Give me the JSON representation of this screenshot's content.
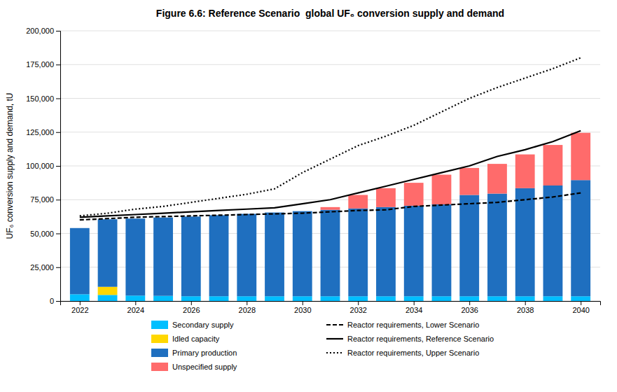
{
  "chart_data": {
    "type": "bar",
    "stacked": true,
    "title": "Figure 6.6: Reference Scenario  global UF₆ conversion supply and demand",
    "ylabel": "UF₆ conversion supply and demand, tU",
    "x": [
      2022,
      2023,
      2024,
      2025,
      2026,
      2027,
      2028,
      2029,
      2030,
      2031,
      2032,
      2033,
      2034,
      2035,
      2036,
      2037,
      2038,
      2039,
      2040
    ],
    "xlim": [
      2021.3,
      2040.7
    ],
    "xticks": [
      2022,
      2024,
      2026,
      2028,
      2030,
      2032,
      2034,
      2036,
      2038,
      2040
    ],
    "ylim": [
      0,
      200000
    ],
    "yticks": [
      0,
      {
        "value": 25000,
        "label": "25,000"
      },
      {
        "value": 50000,
        "label": "50,000"
      },
      {
        "value": 75000,
        "label": "75,000"
      },
      {
        "value": 100000,
        "label": "100,000"
      },
      {
        "value": 125000,
        "label": "125,000"
      },
      {
        "value": 150000,
        "label": "150,000"
      },
      {
        "value": 175000,
        "label": "175,000"
      },
      {
        "value": 200000,
        "label": "200,000"
      }
    ],
    "grid": true,
    "legend": "bottom",
    "series": [
      {
        "name": "Secondary supply",
        "type": "bar",
        "color": "#00BFFF",
        "values": [
          5000,
          4500,
          4000,
          3800,
          3500,
          3500,
          3500,
          3500,
          3500,
          3500,
          3500,
          3500,
          3500,
          3500,
          3500,
          3500,
          3500,
          3500,
          3500
        ]
      },
      {
        "name": "Idled capacity",
        "type": "bar",
        "color": "#FFD700",
        "values": [
          0,
          6000,
          0,
          0,
          0,
          0,
          0,
          0,
          0,
          0,
          0,
          0,
          0,
          0,
          0,
          0,
          0,
          0,
          0
        ]
      },
      {
        "name": "Primary production",
        "type": "bar",
        "color": "#1F6FBF",
        "values": [
          49000,
          50000,
          57000,
          58000,
          59000,
          60000,
          61000,
          62000,
          63000,
          64000,
          65000,
          66000,
          67000,
          68000,
          75000,
          76000,
          80000,
          82000,
          86000
        ]
      },
      {
        "name": "Unspecified supply",
        "type": "bar",
        "color": "#FF6B6B",
        "values": [
          0,
          0,
          0,
          0,
          0,
          0,
          0,
          0,
          0,
          2000,
          10000,
          14000,
          17000,
          22000,
          20000,
          22000,
          25000,
          30000,
          35000
        ]
      },
      {
        "name": "Reactor requirements, Lower Scenario",
        "type": "line",
        "color": "#000000",
        "line_style": "dashed",
        "values": [
          60000,
          61000,
          62000,
          62500,
          63000,
          63500,
          64000,
          64500,
          65000,
          66000,
          67000,
          67500,
          70000,
          71000,
          72000,
          73000,
          75000,
          77000,
          80000
        ]
      },
      {
        "name": "Reactor requirements, Reference Scenario",
        "type": "line",
        "color": "#000000",
        "line_style": "solid",
        "values": [
          62000,
          63000,
          64000,
          65000,
          66000,
          67000,
          68000,
          69000,
          72000,
          75000,
          80000,
          85000,
          90000,
          95000,
          100000,
          107000,
          112000,
          118000,
          126000
        ]
      },
      {
        "name": "Reactor requirements, Upper Scenario",
        "type": "line",
        "color": "#000000",
        "line_style": "dotted",
        "values": [
          63000,
          65000,
          68000,
          70000,
          73000,
          76000,
          79000,
          83000,
          95000,
          105000,
          115000,
          122000,
          130000,
          140000,
          150000,
          158000,
          165000,
          172000,
          180000
        ]
      }
    ]
  }
}
